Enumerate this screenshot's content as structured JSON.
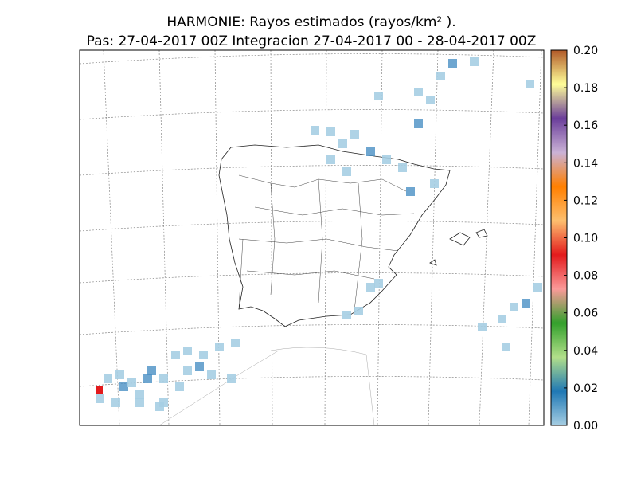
{
  "title_line1": "HARMONIE: Rayos estimados  (rayos/km² ).",
  "title_line2": "Pas: 27-04-2017 00Z Integracion 27-04-2017 00 - 28-04-2017 00Z",
  "colorbar": {
    "clim": [
      0,
      0.2
    ],
    "ticks": [
      {
        "value": 0,
        "label": "0.00"
      },
      {
        "value": 0.02,
        "label": "0.02"
      },
      {
        "value": 0.04,
        "label": "0.04"
      },
      {
        "value": 0.06,
        "label": "0.06"
      },
      {
        "value": 0.08,
        "label": "0.08"
      },
      {
        "value": 0.1,
        "label": "0.10"
      },
      {
        "value": 0.12,
        "label": "0.12"
      },
      {
        "value": 0.14,
        "label": "0.14"
      },
      {
        "value": 0.16,
        "label": "0.16"
      },
      {
        "value": 0.18,
        "label": "0.18"
      },
      {
        "value": 0.2,
        "label": "0.20"
      }
    ],
    "colors": [
      "#a6cee3",
      "#1f78b4",
      "#b2df8a",
      "#33a02c",
      "#fb9a99",
      "#e31a1c",
      "#fdbf6f",
      "#ff7f00",
      "#cab2d6",
      "#6a3d9a",
      "#ffff99",
      "#b15928"
    ]
  }
}
